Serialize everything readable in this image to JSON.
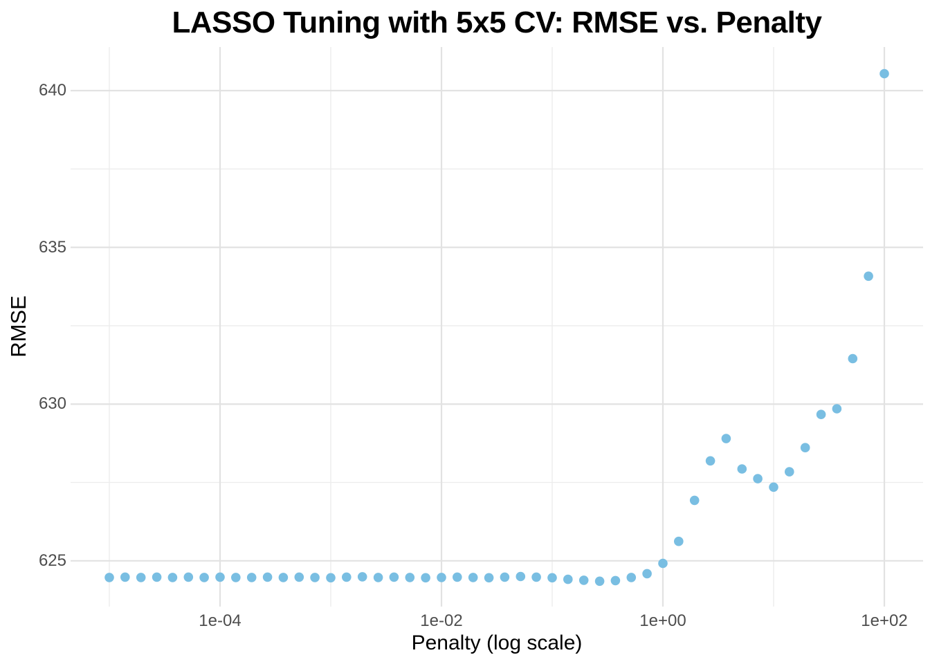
{
  "chart_data": {
    "type": "scatter",
    "title": "LASSO Tuning with 5x5 CV: RMSE vs. Penalty",
    "xlabel": "Penalty (log scale)",
    "ylabel": "RMSE",
    "x_scale": "log10",
    "xlim_log10": [
      -5.35,
      2.35
    ],
    "ylim": [
      623.54,
      641.39
    ],
    "x_ticks": [
      {
        "value": 0.0001,
        "label": "1e-04"
      },
      {
        "value": 0.01,
        "label": "1e-02"
      },
      {
        "value": 1,
        "label": "1e+00"
      },
      {
        "value": 100,
        "label": "1e+02"
      }
    ],
    "x_minor_breaks_log10": [
      -5,
      -3,
      -1,
      1
    ],
    "y_ticks": [
      {
        "value": 625,
        "label": "625"
      },
      {
        "value": 630,
        "label": "630"
      },
      {
        "value": 635,
        "label": "635"
      },
      {
        "value": 640,
        "label": "640"
      }
    ],
    "y_minor_breaks": [
      627.5,
      632.5,
      637.5
    ],
    "grid": {
      "major_color": "#E2E2E2",
      "minor_color": "#ECECEC",
      "background": "#FFFFFF"
    },
    "point_color": "#79BEE2",
    "point_radius": 6.8,
    "text_colors": {
      "tick_label": "#4D4D4D",
      "axis_title": "#000000",
      "title": "#000000"
    },
    "legend": "none",
    "series": [
      {
        "name": "RMSE",
        "penalty": [
          1e-05,
          1.389e-05,
          1.931e-05,
          2.683e-05,
          3.728e-05,
          5.179e-05,
          7.197e-05,
          0.0001,
          0.0001389,
          0.0001931,
          0.0002683,
          0.0003728,
          0.0005179,
          0.0007197,
          0.001,
          0.001389,
          0.001931,
          0.002683,
          0.003728,
          0.005179,
          0.007197,
          0.01,
          0.01389,
          0.01931,
          0.02683,
          0.03728,
          0.05179,
          0.07197,
          0.1,
          0.1389,
          0.1931,
          0.2683,
          0.3728,
          0.5179,
          0.7197,
          1.0,
          1.389,
          1.931,
          2.683,
          3.728,
          5.179,
          7.197,
          10.0,
          13.89,
          19.31,
          26.83,
          37.28,
          51.79,
          71.97,
          100.0
        ],
        "rmse": [
          624.47,
          624.48,
          624.47,
          624.48,
          624.47,
          624.48,
          624.47,
          624.48,
          624.47,
          624.47,
          624.48,
          624.47,
          624.48,
          624.47,
          624.46,
          624.48,
          624.49,
          624.47,
          624.48,
          624.47,
          624.46,
          624.47,
          624.48,
          624.47,
          624.46,
          624.48,
          624.5,
          624.48,
          624.46,
          624.41,
          624.38,
          624.35,
          624.37,
          624.47,
          624.59,
          624.92,
          625.62,
          626.93,
          628.19,
          628.9,
          627.93,
          627.62,
          627.35,
          627.84,
          628.61,
          629.67,
          629.85,
          631.45,
          634.08,
          640.54
        ]
      }
    ]
  }
}
